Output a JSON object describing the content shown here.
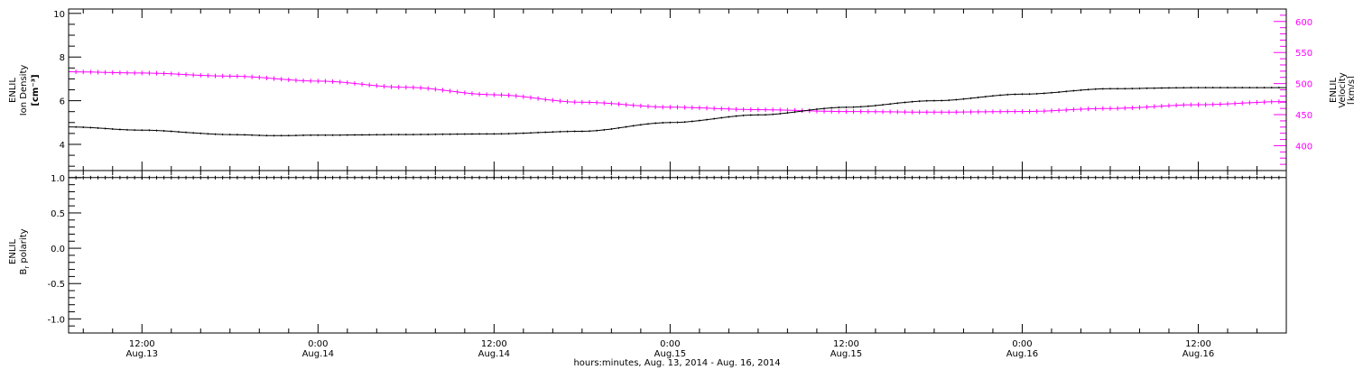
{
  "colors": {
    "ink": "#000000",
    "velocity": "#ff00ff",
    "background": "#ffffff"
  },
  "chart_data": [
    {
      "type": "line",
      "panel": "density-velocity",
      "ylabel_left_lines": [
        "ENLIL",
        "Ion Density"
      ],
      "ylabel_left_unit": "[cm⁻³]",
      "ylabel_right_lines": [
        "ENLIL",
        "Velocity"
      ],
      "ylabel_right_unit": "[km/s]",
      "xlim": [
        "2014-08-13T07:00",
        "2014-08-16T18:00"
      ],
      "ylim_left": [
        2.8,
        10.2
      ],
      "ylim_right": [
        360,
        620
      ],
      "yticks_left": [
        "4",
        "6",
        "8",
        "10"
      ],
      "yticks_right": [
        "400",
        "450",
        "500",
        "550",
        "600"
      ],
      "series": [
        {
          "axis": "left",
          "color": "#000000",
          "x": [
            "2014-08-13T07:00",
            "2014-08-13T12:00",
            "2014-08-13T18:00",
            "2014-08-13T21:00",
            "2014-08-14T00:00",
            "2014-08-14T06:00",
            "2014-08-14T12:00",
            "2014-08-14T18:00",
            "2014-08-15T00:00",
            "2014-08-15T06:00",
            "2014-08-15T12:00",
            "2014-08-15T18:00",
            "2014-08-16T00:00",
            "2014-08-16T06:00",
            "2014-08-16T12:00",
            "2014-08-16T18:00"
          ],
          "y": [
            4.8,
            4.65,
            4.45,
            4.4,
            4.42,
            4.45,
            4.48,
            4.6,
            5.0,
            5.35,
            5.7,
            6.0,
            6.3,
            6.55,
            6.6,
            6.6
          ]
        },
        {
          "axis": "right",
          "color": "#ff00ff",
          "x": [
            "2014-08-13T07:00",
            "2014-08-13T12:00",
            "2014-08-13T18:00",
            "2014-08-14T00:00",
            "2014-08-14T06:00",
            "2014-08-14T12:00",
            "2014-08-14T18:00",
            "2014-08-15T00:00",
            "2014-08-15T06:00",
            "2014-08-15T12:00",
            "2014-08-15T18:00",
            "2014-08-16T00:00",
            "2014-08-16T06:00",
            "2014-08-16T12:00",
            "2014-08-16T18:00"
          ],
          "y": [
            519,
            517,
            512,
            504,
            494,
            482,
            470,
            462,
            458,
            455,
            454,
            455,
            460,
            466,
            471
          ]
        }
      ]
    },
    {
      "type": "line",
      "panel": "polarity",
      "ylabel_lines": [
        "ENLIL",
        "B",
        " polarity"
      ],
      "ylabel_sub": "r",
      "xlim": [
        "2014-08-13T07:00",
        "2014-08-16T18:00"
      ],
      "ylim": [
        -1.2,
        1.1
      ],
      "yticks": [
        "1.0",
        "0.5",
        "0.0",
        "-0.5",
        "-1.0"
      ],
      "series": [
        {
          "color": "#000000",
          "x": [
            "2014-08-13T07:00",
            "2014-08-16T18:00"
          ],
          "y": [
            1.0,
            1.0
          ]
        }
      ],
      "xticks": [
        {
          "x": "2014-08-13T12:00",
          "time": "12:00",
          "date": "Aug.13"
        },
        {
          "x": "2014-08-14T00:00",
          "time": "0:00",
          "date": "Aug.14"
        },
        {
          "x": "2014-08-14T12:00",
          "time": "12:00",
          "date": "Aug.14"
        },
        {
          "x": "2014-08-15T00:00",
          "time": "0:00",
          "date": "Aug.15"
        },
        {
          "x": "2014-08-15T12:00",
          "time": "12:00",
          "date": "Aug.15"
        },
        {
          "x": "2014-08-16T00:00",
          "time": "0:00",
          "date": "Aug.16"
        },
        {
          "x": "2014-08-16T12:00",
          "time": "12:00",
          "date": "Aug.16"
        }
      ],
      "xlabel": "hours:minutes, Aug. 13, 2014 - Aug. 16, 2014"
    }
  ]
}
